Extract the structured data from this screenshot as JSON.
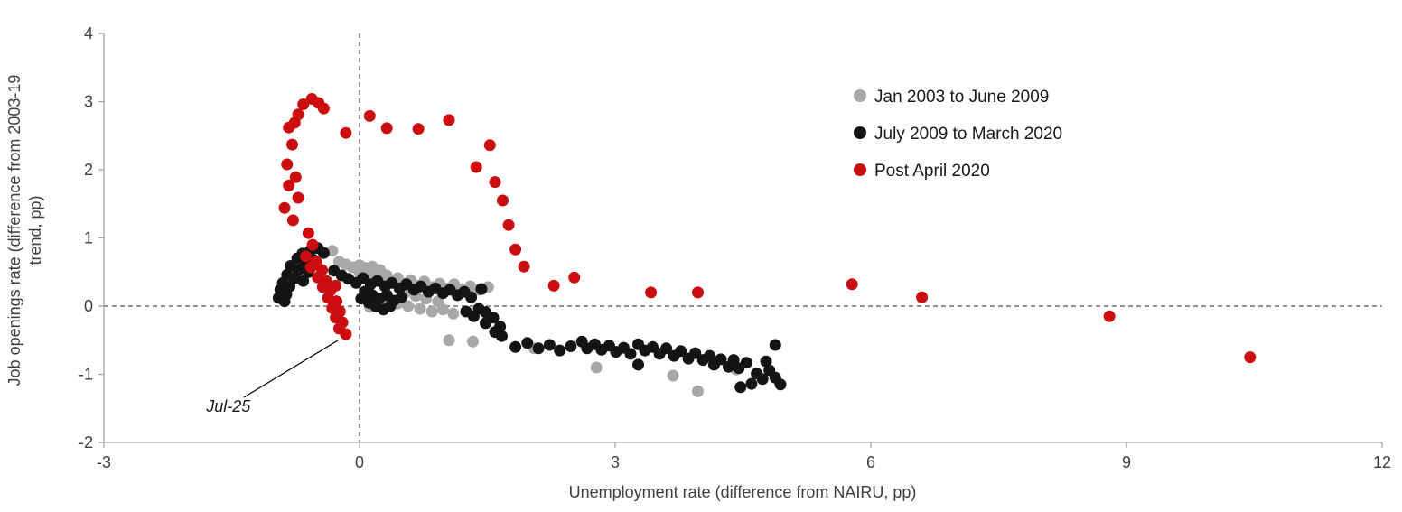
{
  "chart_data": {
    "type": "scatter",
    "title": "",
    "xlabel": "Unemployment rate (difference from NAIRU, pp)",
    "ylabel": "Job openings rate (difference from 2003-19 trend, pp)",
    "ylabel_lines": [
      "Job openings rate (difference from 2003-19",
      "trend, pp)"
    ],
    "xlim": [
      -3,
      12
    ],
    "ylim": [
      -2,
      4
    ],
    "xticks": [
      -3,
      0,
      3,
      6,
      9,
      12
    ],
    "yticks": [
      -2,
      -1,
      0,
      1,
      2,
      3,
      4
    ],
    "grid": false,
    "zero_reference_lines": {
      "x": 0,
      "y": 0,
      "style": "dashed"
    },
    "legend_position": "upper-right-inside",
    "marker_radius": 6.5,
    "series": [
      {
        "name": "Jan 2003 to June 2009",
        "color": "#a8a8a8",
        "points": [
          [
            -0.32,
            0.81
          ],
          [
            -0.24,
            0.65
          ],
          [
            -0.16,
            0.61
          ],
          [
            -0.08,
            0.57
          ],
          [
            0.0,
            0.6
          ],
          [
            0.07,
            0.56
          ],
          [
            0.15,
            0.58
          ],
          [
            0.0,
            0.49
          ],
          [
            0.09,
            0.46
          ],
          [
            0.18,
            0.48
          ],
          [
            0.24,
            0.53
          ],
          [
            0.32,
            0.45
          ],
          [
            0.23,
            0.38
          ],
          [
            0.36,
            0.36
          ],
          [
            0.45,
            0.41
          ],
          [
            0.52,
            0.33
          ],
          [
            0.6,
            0.38
          ],
          [
            0.68,
            0.3
          ],
          [
            0.76,
            0.36
          ],
          [
            0.85,
            0.28
          ],
          [
            0.94,
            0.33
          ],
          [
            1.03,
            0.26
          ],
          [
            1.11,
            0.32
          ],
          [
            1.21,
            0.25
          ],
          [
            1.3,
            0.29
          ],
          [
            1.4,
            0.24
          ],
          [
            1.51,
            0.28
          ],
          [
            0.53,
            0.19
          ],
          [
            0.66,
            0.15
          ],
          [
            0.78,
            0.11
          ],
          [
            0.92,
            0.07
          ],
          [
            0.45,
            0.04
          ],
          [
            0.57,
            0.0
          ],
          [
            0.71,
            -0.04
          ],
          [
            0.85,
            -0.08
          ],
          [
            0.98,
            -0.05
          ],
          [
            1.1,
            -0.11
          ],
          [
            0.21,
            0.08
          ],
          [
            0.32,
            0.01
          ],
          [
            0.12,
            -0.01
          ],
          [
            1.05,
            -0.5
          ],
          [
            1.33,
            -0.52
          ],
          [
            2.05,
            -0.62
          ],
          [
            2.78,
            -0.9
          ],
          [
            3.68,
            -1.02
          ],
          [
            3.97,
            -1.25
          ],
          [
            4.42,
            -0.93
          ]
        ]
      },
      {
        "name": "July 2009 to March 2020",
        "color": "#141414",
        "points": [
          [
            4.94,
            -1.15
          ],
          [
            4.88,
            -1.05
          ],
          [
            4.81,
            -0.94
          ],
          [
            4.73,
            -1.07
          ],
          [
            4.66,
            -0.99
          ],
          [
            4.6,
            -1.14
          ],
          [
            4.47,
            -1.19
          ],
          [
            4.54,
            -0.83
          ],
          [
            4.45,
            -0.91
          ],
          [
            4.39,
            -0.79
          ],
          [
            4.33,
            -0.89
          ],
          [
            4.24,
            -0.78
          ],
          [
            4.16,
            -0.86
          ],
          [
            4.11,
            -0.73
          ],
          [
            4.03,
            -0.79
          ],
          [
            3.94,
            -0.69
          ],
          [
            3.86,
            -0.77
          ],
          [
            3.77,
            -0.66
          ],
          [
            3.69,
            -0.73
          ],
          [
            3.6,
            -0.62
          ],
          [
            3.52,
            -0.7
          ],
          [
            3.44,
            -0.6
          ],
          [
            3.35,
            -0.65
          ],
          [
            3.27,
            -0.86
          ],
          [
            3.27,
            -0.56
          ],
          [
            3.18,
            -0.7
          ],
          [
            3.1,
            -0.61
          ],
          [
            3.01,
            -0.67
          ],
          [
            2.93,
            -0.58
          ],
          [
            2.84,
            -0.64
          ],
          [
            2.76,
            -0.56
          ],
          [
            2.67,
            -0.62
          ],
          [
            2.61,
            -0.52
          ],
          [
            2.48,
            -0.59
          ],
          [
            2.35,
            -0.65
          ],
          [
            2.23,
            -0.57
          ],
          [
            2.1,
            -0.62
          ],
          [
            1.97,
            -0.54
          ],
          [
            1.83,
            -0.6
          ],
          [
            1.67,
            -0.44
          ],
          [
            1.59,
            -0.38
          ],
          [
            1.65,
            -0.3
          ],
          [
            1.48,
            -0.25
          ],
          [
            1.57,
            -0.17
          ],
          [
            1.34,
            -0.15
          ],
          [
            1.4,
            -0.04
          ],
          [
            1.48,
            -0.09
          ],
          [
            1.25,
            -0.08
          ],
          [
            1.43,
            0.25
          ],
          [
            1.31,
            0.13
          ],
          [
            1.23,
            0.21
          ],
          [
            1.15,
            0.16
          ],
          [
            1.06,
            0.24
          ],
          [
            0.98,
            0.19
          ],
          [
            0.89,
            0.26
          ],
          [
            0.81,
            0.21
          ],
          [
            0.72,
            0.29
          ],
          [
            0.64,
            0.24
          ],
          [
            0.55,
            0.32
          ],
          [
            0.47,
            0.26
          ],
          [
            0.38,
            0.34
          ],
          [
            0.3,
            0.29
          ],
          [
            0.21,
            0.37
          ],
          [
            0.13,
            0.32
          ],
          [
            0.04,
            0.41
          ],
          [
            -0.04,
            0.34
          ],
          [
            -0.13,
            0.4
          ],
          [
            -0.21,
            0.45
          ],
          [
            -0.3,
            0.52
          ],
          [
            0.06,
            0.21
          ],
          [
            0.15,
            0.16
          ],
          [
            0.23,
            0.11
          ],
          [
            0.32,
            0.16
          ],
          [
            0.4,
            0.08
          ],
          [
            0.49,
            0.13
          ],
          [
            0.02,
            0.11
          ],
          [
            0.11,
            0.05
          ],
          [
            0.19,
            0.0
          ],
          [
            0.28,
            -0.05
          ],
          [
            0.36,
            0.0
          ],
          [
            -0.42,
            0.78
          ],
          [
            -0.49,
            0.85
          ],
          [
            -0.58,
            0.81
          ],
          [
            -0.67,
            0.77
          ],
          [
            -0.73,
            0.7
          ],
          [
            -0.54,
            0.68
          ],
          [
            -0.64,
            0.63
          ],
          [
            -0.81,
            0.59
          ],
          [
            -0.72,
            0.53
          ],
          [
            -0.6,
            0.5
          ],
          [
            -0.85,
            0.46
          ],
          [
            -0.76,
            0.41
          ],
          [
            -0.66,
            0.37
          ],
          [
            -0.9,
            0.34
          ],
          [
            -0.82,
            0.29
          ],
          [
            -0.93,
            0.24
          ],
          [
            -0.86,
            0.17
          ],
          [
            -0.95,
            0.12
          ],
          [
            -0.88,
            0.07
          ],
          [
            4.88,
            -0.57
          ],
          [
            4.77,
            -0.81
          ]
        ]
      },
      {
        "name": "Post April 2020",
        "color": "#cb0d10",
        "points": [
          [
            10.45,
            -0.75
          ],
          [
            8.8,
            -0.15
          ],
          [
            6.6,
            0.13
          ],
          [
            5.78,
            0.32
          ],
          [
            3.97,
            0.2
          ],
          [
            3.42,
            0.2
          ],
          [
            2.52,
            0.42
          ],
          [
            2.28,
            0.3
          ],
          [
            1.93,
            0.58
          ],
          [
            1.83,
            0.83
          ],
          [
            1.75,
            1.19
          ],
          [
            1.68,
            1.55
          ],
          [
            1.59,
            1.82
          ],
          [
            1.53,
            2.36
          ],
          [
            1.37,
            2.04
          ],
          [
            1.05,
            2.73
          ],
          [
            0.69,
            2.6
          ],
          [
            0.32,
            2.61
          ],
          [
            0.12,
            2.79
          ],
          [
            -0.16,
            2.54
          ],
          [
            -0.42,
            2.9
          ],
          [
            -0.48,
            2.98
          ],
          [
            -0.56,
            3.04
          ],
          [
            -0.66,
            2.96
          ],
          [
            -0.72,
            2.81
          ],
          [
            -0.76,
            2.69
          ],
          [
            -0.83,
            2.62
          ],
          [
            -0.79,
            2.37
          ],
          [
            -0.85,
            2.08
          ],
          [
            -0.75,
            1.89
          ],
          [
            -0.83,
            1.77
          ],
          [
            -0.72,
            1.59
          ],
          [
            -0.88,
            1.44
          ],
          [
            -0.78,
            1.26
          ],
          [
            -0.6,
            1.07
          ],
          [
            -0.55,
            0.9
          ],
          [
            -0.63,
            0.73
          ],
          [
            -0.51,
            0.65
          ],
          [
            -0.57,
            0.57
          ],
          [
            -0.44,
            0.53
          ],
          [
            -0.49,
            0.42
          ],
          [
            -0.39,
            0.37
          ],
          [
            -0.28,
            0.3
          ],
          [
            -0.43,
            0.28
          ],
          [
            -0.34,
            0.23
          ],
          [
            -0.37,
            0.12
          ],
          [
            -0.27,
            0.07
          ],
          [
            -0.32,
            -0.03
          ],
          [
            -0.23,
            -0.08
          ],
          [
            -0.28,
            -0.17
          ],
          [
            -0.2,
            -0.24
          ],
          [
            -0.24,
            -0.33
          ],
          [
            -0.16,
            -0.41
          ]
        ]
      }
    ],
    "annotation": {
      "label": "Jul-25",
      "target": [
        -0.16,
        -0.41
      ],
      "label_pos": [
        -1.54,
        -1.55
      ],
      "line_start": [
        -1.36,
        -1.34
      ],
      "line_end": [
        -0.25,
        -0.5
      ]
    }
  }
}
